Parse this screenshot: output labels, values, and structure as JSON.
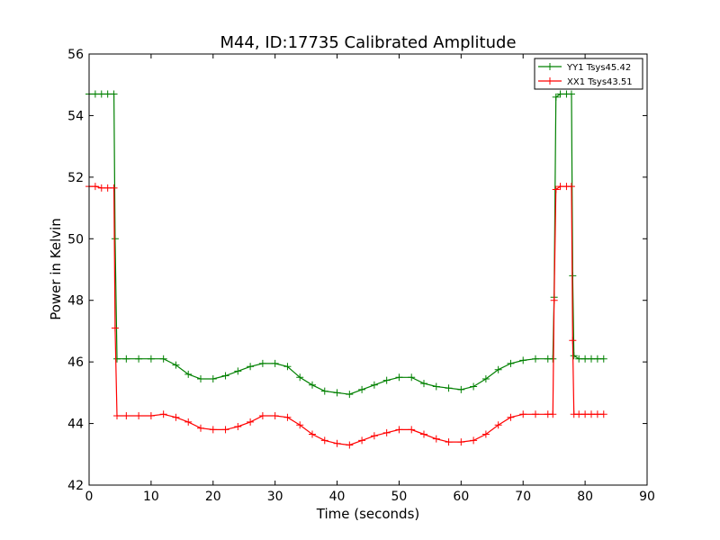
{
  "chart_data": {
    "type": "line",
    "title": "M44, ID:17735 Calibrated Amplitude",
    "xlabel": "Time (seconds)",
    "ylabel": "Power in Kelvin",
    "xlim": [
      0,
      90
    ],
    "ylim": [
      42,
      56
    ],
    "xticks": [
      "0",
      "10",
      "20",
      "30",
      "40",
      "50",
      "60",
      "70",
      "80",
      "90"
    ],
    "yticks": [
      "42",
      "44",
      "46",
      "48",
      "50",
      "52",
      "54",
      "56"
    ],
    "grid": false,
    "legend_position": "top-right",
    "series": [
      {
        "name": "YY1 Tsys45.42",
        "color": "#008000",
        "marker": "plus",
        "x": [
          0,
          1,
          2,
          3,
          4,
          4.2,
          4.5,
          6,
          8,
          10,
          12,
          14,
          16,
          18,
          20,
          22,
          24,
          26,
          28,
          30,
          32,
          34,
          36,
          38,
          40,
          42,
          44,
          46,
          48,
          50,
          52,
          54,
          56,
          58,
          60,
          62,
          64,
          66,
          68,
          70,
          72,
          74,
          74.8,
          75,
          75.3,
          76,
          77,
          77.8,
          78,
          78.2,
          79,
          80,
          81,
          82,
          83
        ],
        "y": [
          54.7,
          54.7,
          54.7,
          54.7,
          54.7,
          50.0,
          46.1,
          46.1,
          46.1,
          46.1,
          46.1,
          45.9,
          45.6,
          45.45,
          45.45,
          45.55,
          45.7,
          45.85,
          45.95,
          45.95,
          45.85,
          45.5,
          45.25,
          45.05,
          45.0,
          44.95,
          45.1,
          45.25,
          45.4,
          45.5,
          45.5,
          45.3,
          45.2,
          45.15,
          45.1,
          45.2,
          45.45,
          45.75,
          45.95,
          46.05,
          46.1,
          46.1,
          46.1,
          48.1,
          54.6,
          54.7,
          54.7,
          54.7,
          48.8,
          46.2,
          46.1,
          46.1,
          46.1,
          46.1,
          46.1
        ]
      },
      {
        "name": "XX1 Tsys43.51",
        "color": "#ff0000",
        "marker": "plus",
        "x": [
          0,
          1,
          2,
          3,
          4,
          4.2,
          4.5,
          6,
          8,
          10,
          12,
          14,
          16,
          18,
          20,
          22,
          24,
          26,
          28,
          30,
          32,
          34,
          36,
          38,
          40,
          42,
          44,
          46,
          48,
          50,
          52,
          54,
          56,
          58,
          60,
          62,
          64,
          66,
          68,
          70,
          72,
          74,
          74.8,
          75,
          75.3,
          76,
          77,
          77.8,
          78,
          78.2,
          79,
          80,
          81,
          82,
          83
        ],
        "y": [
          51.7,
          51.7,
          51.65,
          51.65,
          51.65,
          47.1,
          44.25,
          44.25,
          44.25,
          44.25,
          44.3,
          44.2,
          44.05,
          43.85,
          43.8,
          43.8,
          43.9,
          44.05,
          44.25,
          44.25,
          44.2,
          43.95,
          43.65,
          43.45,
          43.35,
          43.3,
          43.45,
          43.6,
          43.7,
          43.8,
          43.8,
          43.65,
          43.5,
          43.4,
          43.4,
          43.45,
          43.65,
          43.95,
          44.2,
          44.3,
          44.3,
          44.3,
          44.3,
          48.0,
          51.6,
          51.7,
          51.7,
          51.7,
          46.7,
          44.3,
          44.3,
          44.3,
          44.3,
          44.3,
          44.3
        ]
      }
    ]
  }
}
